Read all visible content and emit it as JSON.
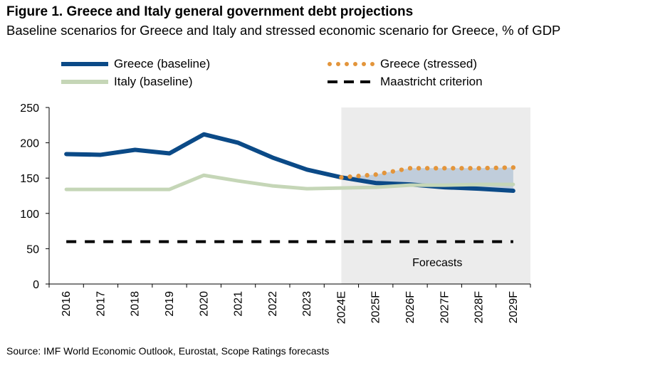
{
  "title": "Figure 1. Greece and Italy general government debt projections",
  "subtitle": "Baseline scenarios for Greece and Italy and stressed economic scenario for Greece, % of GDP",
  "source": "Source: IMF World Economic Outlook, Eurostat, Scope Ratings forecasts",
  "chart_data": {
    "type": "line",
    "categories": [
      "2016",
      "2017",
      "2018",
      "2019",
      "2020",
      "2021",
      "2022",
      "2023",
      "2024E",
      "2025F",
      "2026F",
      "2027F",
      "2028F",
      "2029F"
    ],
    "ylim": [
      0,
      250
    ],
    "yticks": [
      0,
      50,
      100,
      150,
      200,
      250
    ],
    "grid": false,
    "legend_position": "top",
    "forecast_region": {
      "start": "2024E",
      "end": "2029F",
      "label": "Forecasts",
      "color": "#ececec"
    },
    "series": [
      {
        "name": "Greece (baseline)",
        "style": "solid",
        "color": "#0b4a87",
        "values": [
          184,
          183,
          190,
          185,
          212,
          200,
          179,
          162,
          151,
          143,
          141,
          137,
          135,
          132
        ]
      },
      {
        "name": "Greece (stressed)",
        "style": "dotted",
        "color": "#e3953b",
        "values": [
          null,
          null,
          null,
          null,
          null,
          null,
          null,
          null,
          151,
          155,
          164,
          164,
          164,
          165
        ]
      },
      {
        "name": "Italy (baseline)",
        "style": "solid",
        "color": "#c5d6b7",
        "values": [
          134,
          134,
          134,
          134,
          154,
          146,
          139,
          135,
          136,
          137,
          140,
          140,
          141,
          141
        ]
      },
      {
        "name": "Maastricht criterion",
        "style": "dashed",
        "color": "#000000",
        "values": [
          60,
          60,
          60,
          60,
          60,
          60,
          60,
          60,
          60,
          60,
          60,
          60,
          60,
          60
        ]
      }
    ],
    "band": {
      "color": "#b9c8d8",
      "from": "2023",
      "lower": "Greece (baseline)",
      "upper": "Greece (stressed)"
    }
  }
}
